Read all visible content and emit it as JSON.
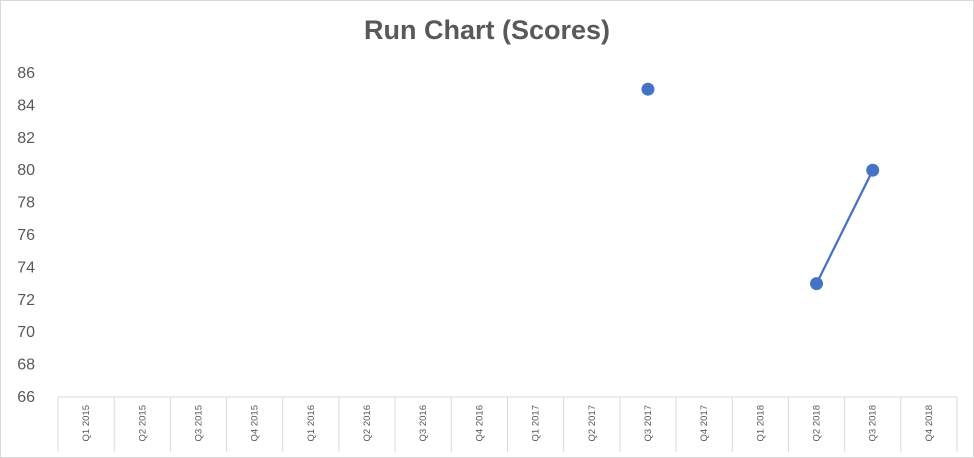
{
  "chart_data": {
    "type": "line",
    "title": "Run Chart (Scores)",
    "xlabel": "",
    "ylabel": "",
    "categories": [
      "Q1 2015",
      "Q2 2015",
      "Q3 2015",
      "Q4 2015",
      "Q1 2016",
      "Q2 2016",
      "Q3 2016",
      "Q4 2016",
      "Q1 2017",
      "Q2 2017",
      "Q3 2017",
      "Q4 2017",
      "Q1 2018",
      "Q2 2018",
      "Q3 2018",
      "Q4 2018"
    ],
    "series": [
      {
        "values": [
          null,
          null,
          null,
          null,
          null,
          null,
          null,
          null,
          null,
          null,
          85,
          null,
          null,
          73,
          80,
          null
        ]
      }
    ],
    "ylim": [
      66,
      86
    ],
    "yticks": [
      66,
      68,
      70,
      72,
      74,
      76,
      78,
      80,
      82,
      84,
      86
    ],
    "grid": false,
    "legend": "none",
    "colors": {
      "series": "#4472c4",
      "axis": "#d9d9d9",
      "text": "#595959"
    }
  }
}
